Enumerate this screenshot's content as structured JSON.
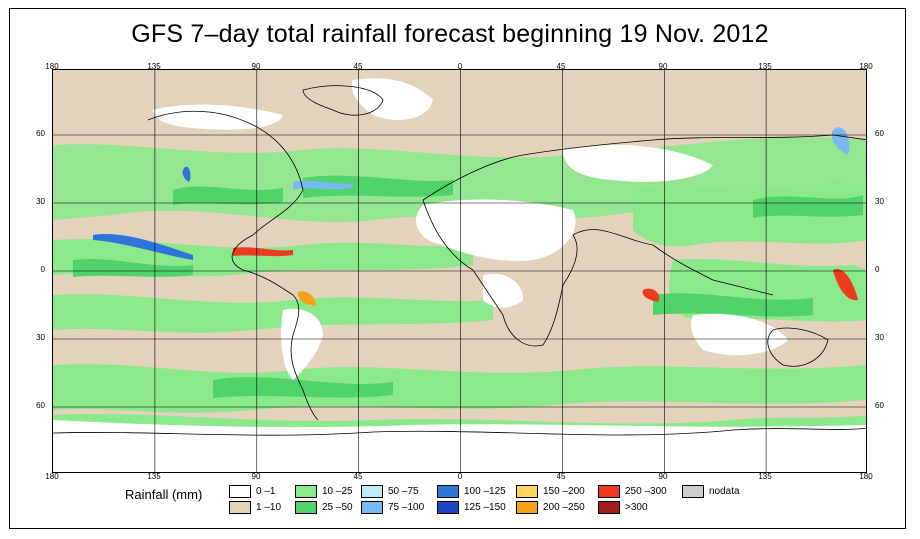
{
  "title": "GFS 7–day total rainfall forecast beginning 19 Nov. 2012",
  "axes": {
    "top_ticks": [
      "180",
      "135",
      "90",
      "45",
      "0",
      "45",
      "90",
      "135",
      "180"
    ],
    "bottom_ticks": [
      "180",
      "135",
      "90",
      "45",
      "0",
      "45",
      "90",
      "135",
      "180"
    ],
    "left_ticks": [
      "60",
      "30",
      "0",
      "30",
      "60"
    ],
    "right_ticks": [
      "60",
      "30",
      "0",
      "30",
      "60"
    ]
  },
  "legend": {
    "label": "Rainfall (mm)",
    "items": [
      {
        "label": "0 –1",
        "color": "#ffffff"
      },
      {
        "label": "1 –10",
        "color": "#e3d3bd"
      },
      {
        "label": "10 –25",
        "color": "#8be88b"
      },
      {
        "label": "25 –50",
        "color": "#4fd36a"
      },
      {
        "label": "50 –75",
        "color": "#bfe9f7"
      },
      {
        "label": "75 –100",
        "color": "#79b8f2"
      },
      {
        "label": "100 –125",
        "color": "#2f74d8"
      },
      {
        "label": "125 –150",
        "color": "#1a47c4"
      },
      {
        "label": "150 –200",
        "color": "#ffd45c"
      },
      {
        "label": "200 –250",
        "color": "#f5a21a"
      },
      {
        "label": "250 –300",
        "color": "#ee3a1f"
      },
      {
        "label": ">300",
        "color": "#a21d1d"
      },
      {
        "label": "nodata",
        "color": "#cfcfcf"
      }
    ]
  },
  "colors": {
    "ocean_dry": "#e3d3bd",
    "land_dry": "#ffffff",
    "moderate_rain": "#8be88b",
    "heavy_rain": "#4fd36a",
    "coastline": "#000000"
  }
}
